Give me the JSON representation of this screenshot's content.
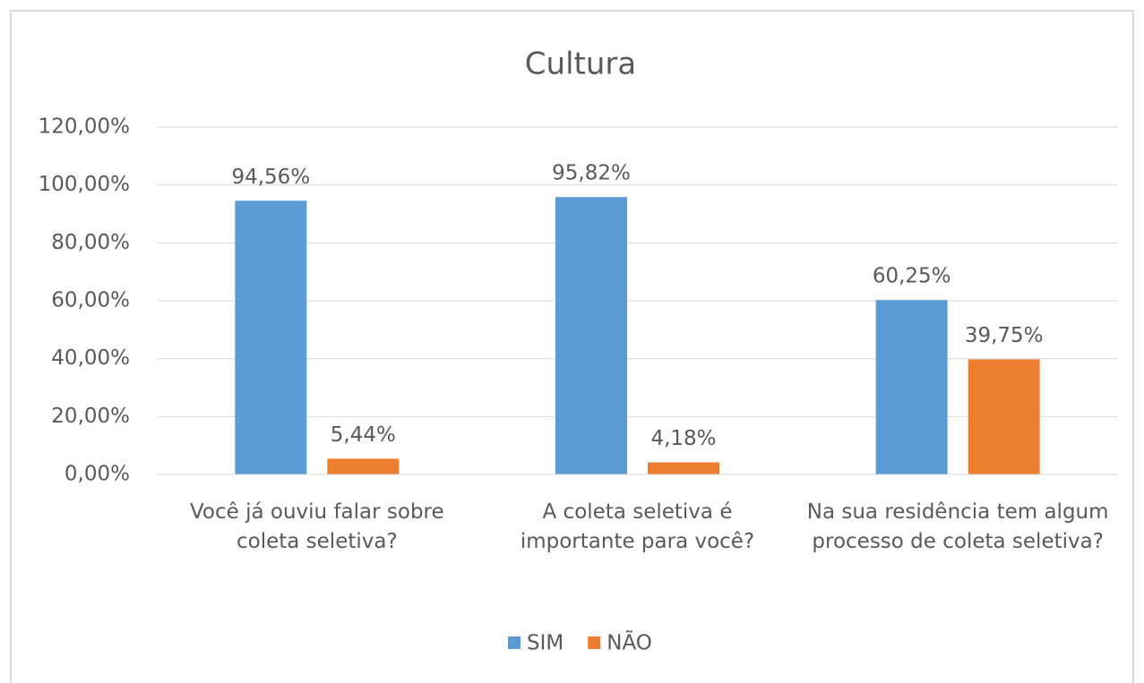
{
  "chart_data": {
    "type": "bar",
    "title": "Cultura",
    "categories": [
      "Você já ouviu falar sobre coleta seletiva?",
      "A coleta seletiva é importante para você?",
      "Na sua residência tem algum processo de coleta seletiva?"
    ],
    "series": [
      {
        "name": "SIM",
        "color": "#5b9bd5",
        "values": [
          94.56,
          95.82,
          60.25
        ],
        "value_labels": [
          "94,56%",
          "95,82%",
          "60,25%"
        ]
      },
      {
        "name": "NÃO",
        "color": "#ed7d31",
        "values": [
          5.44,
          4.18,
          39.75
        ],
        "value_labels": [
          "5,44%",
          "4,18%",
          "39,75%"
        ]
      }
    ],
    "ylim": [
      0,
      120
    ],
    "yticks": [
      {
        "value": 0,
        "label": "0,00%"
      },
      {
        "value": 20,
        "label": "20,00%"
      },
      {
        "value": 40,
        "label": "40,00%"
      },
      {
        "value": 60,
        "label": "60,00%"
      },
      {
        "value": 80,
        "label": "80,00%"
      },
      {
        "value": 100,
        "label": "100,00%"
      },
      {
        "value": 120,
        "label": "120,00%"
      }
    ],
    "grid": true,
    "legend": "bottom"
  }
}
